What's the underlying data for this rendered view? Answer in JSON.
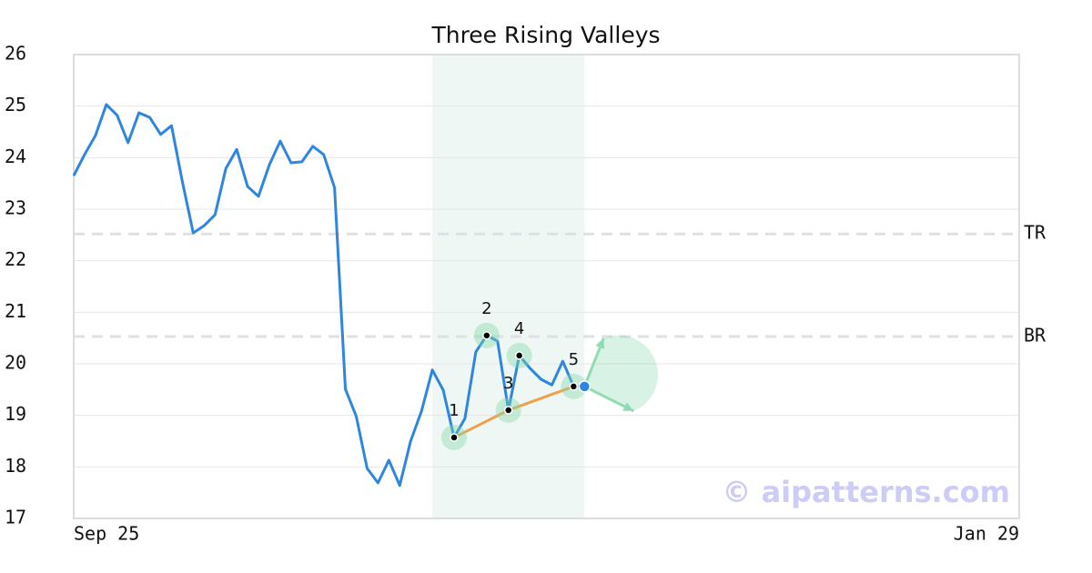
{
  "chart_data": {
    "type": "line",
    "title": "Three Rising Valleys",
    "x": [
      0,
      1,
      2,
      3,
      4,
      5,
      6,
      7,
      8,
      9,
      10,
      11,
      12,
      13,
      14,
      15,
      16,
      17,
      18,
      19,
      20,
      21,
      22,
      23,
      24,
      25,
      26,
      27,
      28,
      29,
      30,
      31,
      32,
      33,
      34,
      35,
      36,
      37,
      38,
      39,
      40,
      41,
      42,
      43,
      44,
      45,
      46,
      47
    ],
    "series": [
      {
        "color": "#2e86de",
        "values": [
          23.65,
          24.06,
          24.43,
          25.03,
          24.82,
          24.29,
          24.87,
          24.78,
          24.45,
          24.62,
          23.53,
          22.54,
          22.68,
          22.89,
          23.79,
          24.16,
          23.44,
          23.25,
          23.86,
          24.32,
          23.9,
          23.92,
          24.22,
          24.06,
          23.42,
          19.51,
          18.98,
          17.97,
          17.69,
          18.13,
          17.64,
          18.5,
          19.08,
          19.88,
          19.49,
          18.57,
          18.94,
          20.23,
          20.55,
          20.44,
          19.1,
          20.16,
          19.91,
          19.7,
          19.59,
          20.05,
          19.56,
          19.56
        ]
      }
    ],
    "xlim": [
      0,
      87
    ],
    "xticks": [
      {
        "value": 0,
        "label": "Sep 25"
      },
      {
        "value": 87,
        "label": "Jan 29"
      }
    ],
    "ylim": [
      17,
      26
    ],
    "yticks": [
      17,
      18,
      19,
      20,
      21,
      22,
      23,
      24,
      25,
      26
    ],
    "grid": true,
    "highlight": [
      33,
      47
    ],
    "levels": [
      {
        "label": "TR",
        "value": 22.52
      },
      {
        "label": "BR",
        "value": 20.53
      }
    ],
    "pattern_points": [
      {
        "label": "1",
        "x": 35,
        "y": 18.57
      },
      {
        "label": "2",
        "x": 38,
        "y": 20.55
      },
      {
        "label": "3",
        "x": 40,
        "y": 19.1
      },
      {
        "label": "4",
        "x": 41,
        "y": 20.16
      },
      {
        "label": "5",
        "x": 46,
        "y": 19.56
      }
    ],
    "trendline_color": "#f0a04b",
    "watermark": "© aipatterns.com"
  }
}
